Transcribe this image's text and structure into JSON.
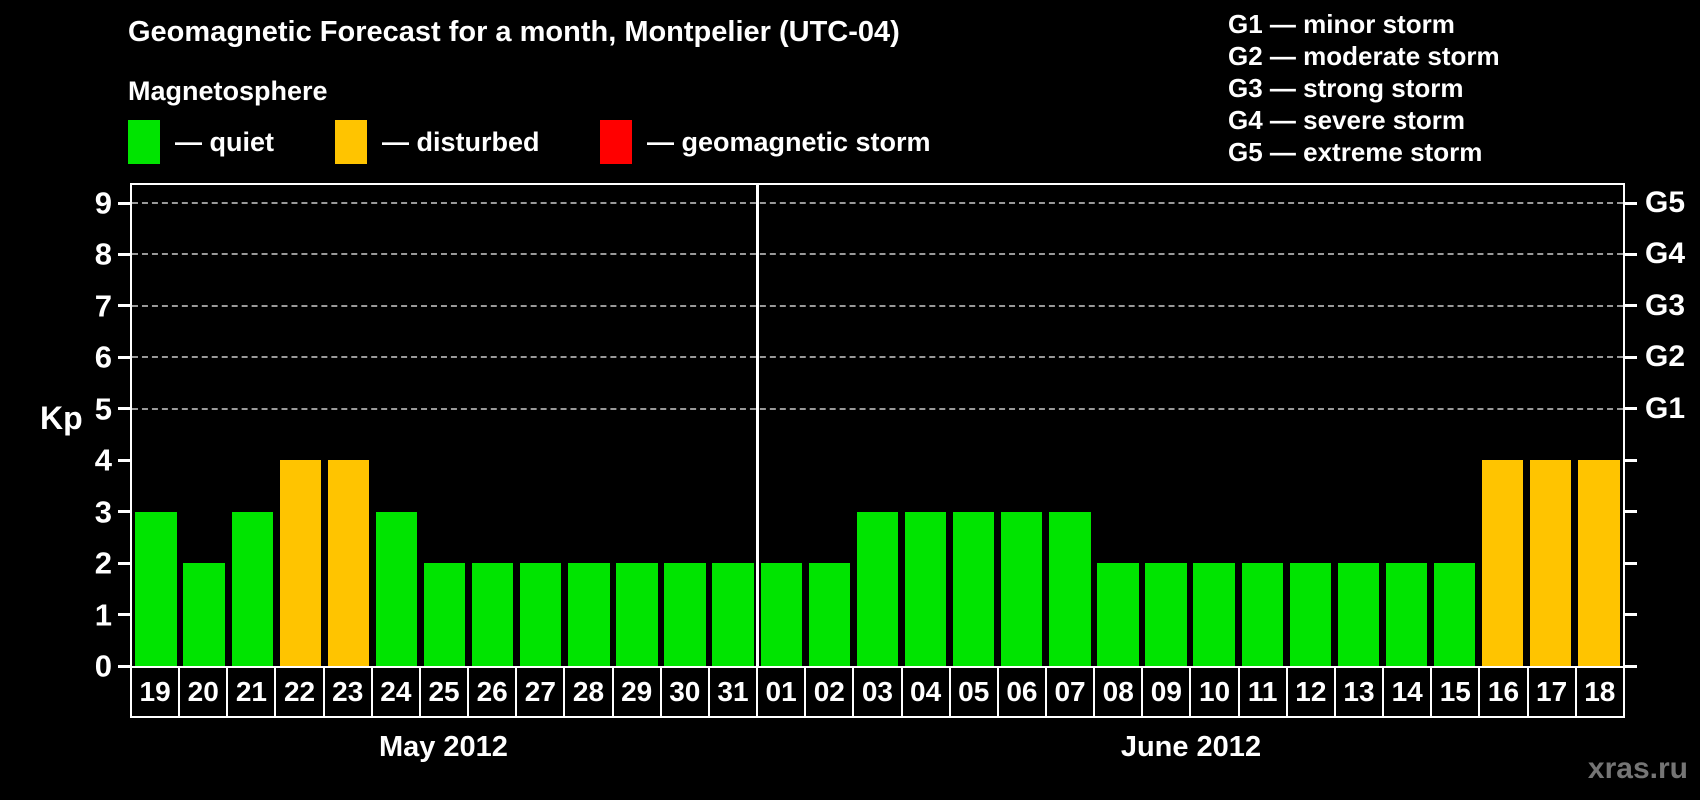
{
  "header": {
    "title": "Geomagnetic Forecast for a month, Montpelier (UTC-04)",
    "subtitle": "Magnetosphere"
  },
  "legend": {
    "items": [
      {
        "key": "quiet",
        "label": "— quiet",
        "color": "#00e400"
      },
      {
        "key": "disturbed",
        "label": "— disturbed",
        "color": "#ffc400"
      },
      {
        "key": "storm",
        "label": "— geomagnetic storm",
        "color": "#ff0000"
      }
    ]
  },
  "g_legend": [
    "G1 — minor storm",
    "G2 — moderate storm",
    "G3 — strong storm",
    "G4 — severe storm",
    "G5 — extreme storm"
  ],
  "watermark": "xras.ru",
  "chart_data": {
    "type": "bar",
    "title": "Geomagnetic Forecast for a month, Montpelier (UTC-04)",
    "ylabel": "Kp",
    "ylim": [
      0,
      9
    ],
    "yticks": [
      0,
      1,
      2,
      3,
      4,
      5,
      6,
      7,
      8,
      9
    ],
    "gridlines_at": [
      5,
      6,
      7,
      8,
      9
    ],
    "grid": "dashed",
    "right_axis_labels": [
      {
        "kp": 5,
        "label": "G1"
      },
      {
        "kp": 6,
        "label": "G2"
      },
      {
        "kp": 7,
        "label": "G3"
      },
      {
        "kp": 8,
        "label": "G4"
      },
      {
        "kp": 9,
        "label": "G5"
      }
    ],
    "colors": {
      "quiet": "#00e400",
      "disturbed": "#ffc400",
      "storm": "#ff0000"
    },
    "months": [
      {
        "label": "May 2012",
        "days": [
          "19",
          "20",
          "21",
          "22",
          "23",
          "24",
          "25",
          "26",
          "27",
          "28",
          "29",
          "30",
          "31"
        ],
        "kp": [
          3,
          2,
          3,
          4,
          4,
          3,
          2,
          2,
          2,
          2,
          2,
          2,
          2
        ],
        "status": [
          "quiet",
          "quiet",
          "quiet",
          "disturbed",
          "disturbed",
          "quiet",
          "quiet",
          "quiet",
          "quiet",
          "quiet",
          "quiet",
          "quiet",
          "quiet"
        ]
      },
      {
        "label": "June 2012",
        "days": [
          "01",
          "02",
          "03",
          "04",
          "05",
          "06",
          "07",
          "08",
          "09",
          "10",
          "11",
          "12",
          "13",
          "14",
          "15",
          "16",
          "17",
          "18"
        ],
        "kp": [
          2,
          2,
          3,
          3,
          3,
          3,
          3,
          2,
          2,
          2,
          2,
          2,
          2,
          2,
          2,
          4,
          4,
          4
        ],
        "status": [
          "quiet",
          "quiet",
          "quiet",
          "quiet",
          "quiet",
          "quiet",
          "quiet",
          "quiet",
          "quiet",
          "quiet",
          "quiet",
          "quiet",
          "quiet",
          "quiet",
          "quiet",
          "disturbed",
          "disturbed",
          "disturbed"
        ]
      }
    ]
  }
}
